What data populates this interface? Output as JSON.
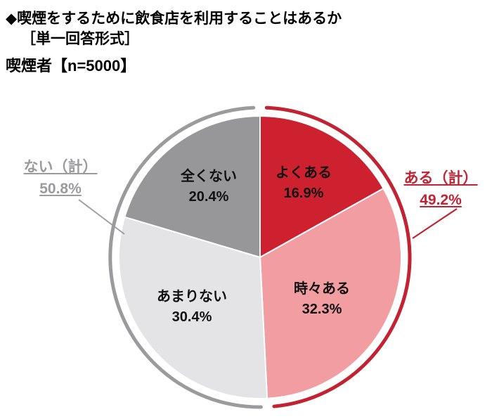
{
  "header": {
    "title": "◆喫煙をするために飲食店を利用することはあるか",
    "subtitle": "［単一回答形式］",
    "respondent": "喫煙者【n=5000】"
  },
  "chart_data": {
    "type": "pie",
    "title": "喫煙をするために飲食店を利用することはあるか",
    "unit": "%",
    "categories": [
      "よくある",
      "時々ある",
      "あまりない",
      "全くない"
    ],
    "values": [
      16.9,
      32.3,
      30.4,
      20.4
    ],
    "value_labels": [
      "16.9%",
      "32.3%",
      "30.4%",
      "20.4%"
    ],
    "colors": [
      "#cd2130",
      "#f19da2",
      "#e4e4e7",
      "#97979a"
    ],
    "start_angle_deg": 0,
    "direction": "clockwise",
    "legend_position": "none",
    "aggregates": [
      {
        "label": "ある（計）",
        "value": 49.2,
        "value_label": "49.2%",
        "color": "#c22232",
        "side": "right",
        "slices": [
          "よくある",
          "時々ある"
        ]
      },
      {
        "label": "ない（計）",
        "value": 50.8,
        "value_label": "50.8%",
        "color": "#9b9b9e",
        "side": "left",
        "slices": [
          "あまりない",
          "全くない"
        ]
      }
    ]
  }
}
